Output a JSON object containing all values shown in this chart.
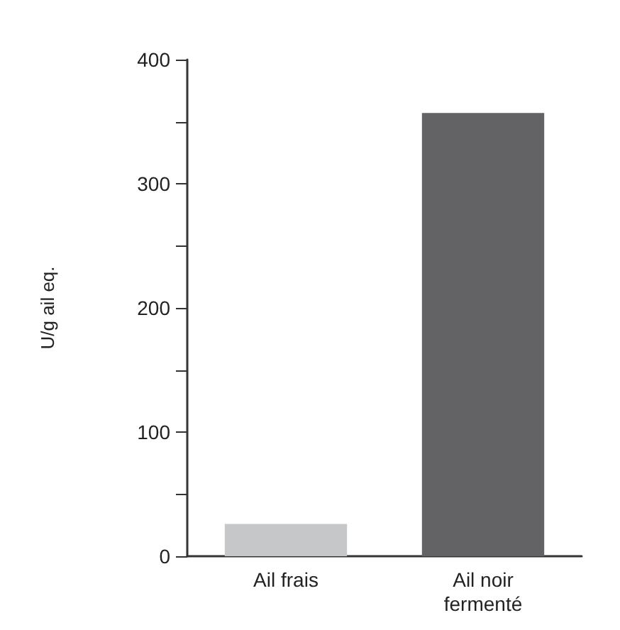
{
  "chart_data": {
    "type": "bar",
    "ylabel": "U/g ail eq.",
    "categories": [
      "Ail frais",
      "Ail noir\nfermenté"
    ],
    "values": [
      26,
      357
    ],
    "colors": [
      "#c6c7c9",
      "#636366"
    ],
    "ylim": [
      0,
      400
    ],
    "yticks": [
      0,
      {
        "value": 50,
        "label": null
      },
      100,
      {
        "value": 150,
        "label": null
      },
      200,
      {
        "value": 250,
        "label": null
      },
      300,
      {
        "value": 350,
        "label": null
      },
      400
    ],
    "grid": false
  }
}
